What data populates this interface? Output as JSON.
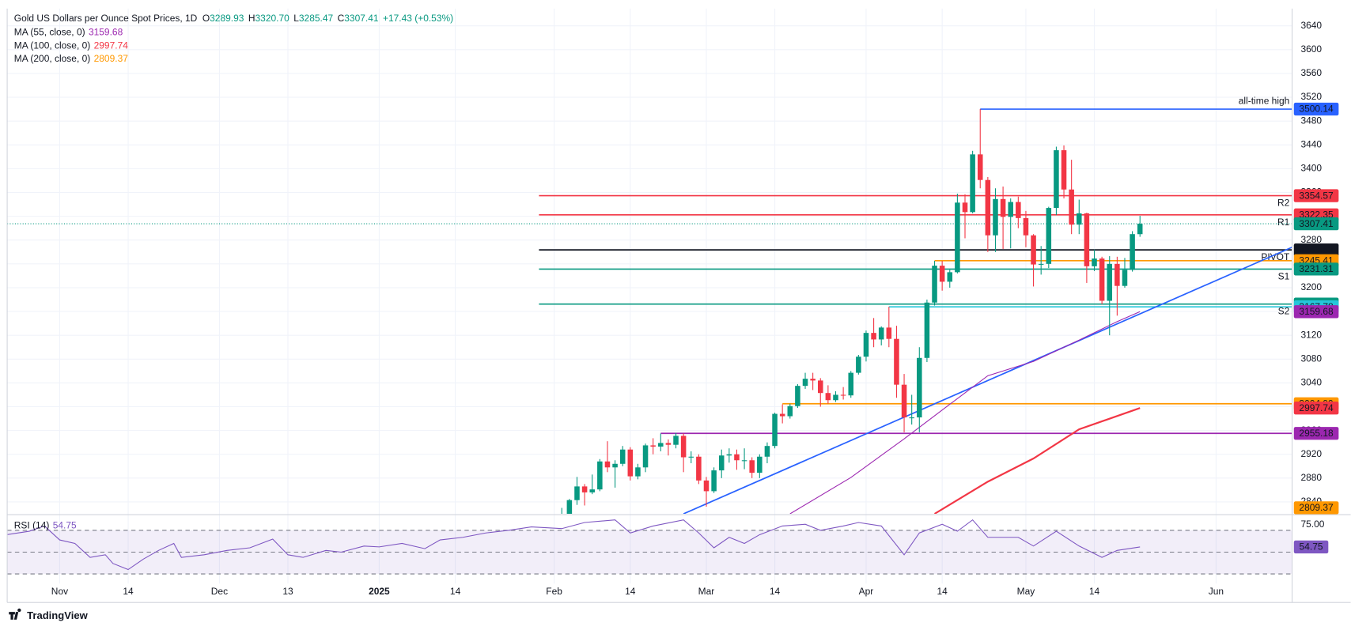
{
  "chart_data": {
    "type": "candlestick",
    "title": "Gold US Dollars per Ounce Spot Prices, 1D",
    "ohlc_labels": [
      "O",
      "H",
      "L",
      "C"
    ],
    "ohlc_value_labels": [
      "3289.93",
      "3320.70",
      "3285.47",
      "3307.41"
    ],
    "change": "+17.43 (+0.53%)",
    "up_color": "#089981",
    "down_color": "#f23645",
    "candles": [
      [
        2800,
        2830,
        2772,
        2815
      ],
      [
        2815,
        2845,
        2810,
        2843
      ],
      [
        2843,
        2882,
        2835,
        2866
      ],
      [
        2866,
        2870,
        2834,
        2856
      ],
      [
        2856,
        2886,
        2853,
        2861
      ],
      [
        2861,
        2912,
        2858,
        2908
      ],
      [
        2908,
        2942,
        2890,
        2898
      ],
      [
        2898,
        2910,
        2864,
        2904
      ],
      [
        2904,
        2934,
        2900,
        2928
      ],
      [
        2928,
        2932,
        2876,
        2883
      ],
      [
        2883,
        2904,
        2878,
        2898
      ],
      [
        2898,
        2938,
        2890,
        2935
      ],
      [
        2935,
        2947,
        2920,
        2933
      ],
      [
        2933,
        2955,
        2925,
        2939
      ],
      [
        2939,
        2945,
        2918,
        2936
      ],
      [
        2936,
        2956,
        2930,
        2951
      ],
      [
        2951,
        2955,
        2890,
        2915
      ],
      [
        2915,
        2925,
        2905,
        2916
      ],
      [
        2916,
        2920,
        2870,
        2876
      ],
      [
        2876,
        2882,
        2832,
        2858
      ],
      [
        2858,
        2898,
        2855,
        2893
      ],
      [
        2893,
        2928,
        2880,
        2918
      ],
      [
        2918,
        2930,
        2906,
        2920
      ],
      [
        2920,
        2928,
        2894,
        2910
      ],
      [
        2910,
        2930,
        2895,
        2910
      ],
      [
        2910,
        2915,
        2880,
        2889
      ],
      [
        2889,
        2920,
        2880,
        2916
      ],
      [
        2916,
        2940,
        2905,
        2934
      ],
      [
        2934,
        2990,
        2930,
        2988
      ],
      [
        2988,
        3004,
        2972,
        2984
      ],
      [
        2984,
        3005,
        2980,
        3001
      ],
      [
        3001,
        3038,
        2998,
        3035
      ],
      [
        3035,
        3057,
        3030,
        3047
      ],
      [
        3047,
        3057,
        3028,
        3044
      ],
      [
        3044,
        3048,
        3000,
        3023
      ],
      [
        3023,
        3036,
        3005,
        3011
      ],
      [
        3011,
        3026,
        3008,
        3020
      ],
      [
        3020,
        3033,
        3012,
        3019
      ],
      [
        3019,
        3060,
        3015,
        3057
      ],
      [
        3057,
        3087,
        3054,
        3084
      ],
      [
        3084,
        3128,
        3076,
        3124
      ],
      [
        3124,
        3149,
        3100,
        3113
      ],
      [
        3113,
        3135,
        3103,
        3133
      ],
      [
        3133,
        3168,
        3100,
        3114
      ],
      [
        3114,
        3136,
        3015,
        3037
      ],
      [
        3037,
        3055,
        2957,
        2982
      ],
      [
        2982,
        3020,
        2970,
        2982
      ],
      [
        2982,
        3100,
        2957,
        3082
      ],
      [
        3082,
        3180,
        3075,
        3175
      ],
      [
        3175,
        3245,
        3170,
        3237
      ],
      [
        3237,
        3245,
        3195,
        3210
      ],
      [
        3210,
        3230,
        3200,
        3226
      ],
      [
        3226,
        3358,
        3224,
        3343
      ],
      [
        3343,
        3357,
        3283,
        3327
      ],
      [
        3327,
        3430,
        3325,
        3424
      ],
      [
        3424,
        3500.14,
        3367,
        3381
      ],
      [
        3381,
        3386,
        3260,
        3288
      ],
      [
        3288,
        3367,
        3260,
        3349
      ],
      [
        3349,
        3370,
        3265,
        3319
      ],
      [
        3319,
        3350,
        3266,
        3344
      ],
      [
        3344,
        3353,
        3300,
        3317
      ],
      [
        3317,
        3329,
        3268,
        3288
      ],
      [
        3288,
        3290,
        3202,
        3239
      ],
      [
        3239,
        3270,
        3222,
        3240
      ],
      [
        3240,
        3336,
        3233,
        3334
      ],
      [
        3334,
        3437,
        3322,
        3431
      ],
      [
        3431,
        3439,
        3350,
        3365
      ],
      [
        3365,
        3415,
        3290,
        3306
      ],
      [
        3306,
        3348,
        3290,
        3325
      ],
      [
        3325,
        3326,
        3208,
        3236
      ],
      [
        3236,
        3264,
        3228,
        3249
      ],
      [
        3249,
        3252,
        3172,
        3178
      ],
      [
        3178,
        3253,
        3120,
        3240
      ],
      [
        3240,
        3252,
        3153,
        3203
      ],
      [
        3203,
        3250,
        3200,
        3230
      ],
      [
        3230,
        3295,
        3227,
        3290
      ],
      [
        3289.93,
        3320.7,
        3285.47,
        3307.41
      ]
    ],
    "xlim": [
      -72.9,
      96
    ],
    "xticks": [
      {
        "value": -66,
        "label": "Nov"
      },
      {
        "value": -57,
        "label": "14"
      },
      {
        "value": -45,
        "label": "Dec"
      },
      {
        "value": -36,
        "label": "13"
      },
      {
        "value": -24,
        "label": "2025"
      },
      {
        "value": -14,
        "label": "14"
      },
      {
        "value": -1,
        "label": "Feb"
      },
      {
        "value": 9,
        "label": "14"
      },
      {
        "value": 19,
        "label": "Mar"
      },
      {
        "value": 28,
        "label": "14"
      },
      {
        "value": 40,
        "label": "Apr"
      },
      {
        "value": 50,
        "label": "14"
      },
      {
        "value": 61,
        "label": "May"
      },
      {
        "value": 70,
        "label": "14"
      },
      {
        "value": 86,
        "label": "Jun"
      }
    ],
    "ylim": [
      2820,
      3669
    ],
    "yticks": [
      3640,
      3600,
      3560,
      3520,
      3480,
      3440,
      3400,
      3360,
      3320,
      3280,
      3240,
      3200,
      3160,
      3120,
      3080,
      3040,
      3000,
      2960,
      2920,
      2880,
      2840
    ],
    "grid": true,
    "series": [
      {
        "name": "MA (55, close, 0)",
        "color": "#9c27b0",
        "x": [
          30,
          38,
          45,
          51,
          56,
          62,
          68,
          73,
          76
        ],
        "values": [
          2820,
          2881,
          2946,
          3004,
          3052,
          3076,
          3112,
          3143,
          3159.68
        ]
      },
      {
        "name": "MA (100, close, 0)",
        "color": "#f23645",
        "x": [
          49,
          56,
          62,
          68,
          76
        ],
        "values": [
          2820,
          2874,
          2913,
          2962,
          2997.74
        ]
      },
      {
        "name": "MA (200, close, 0)",
        "color": "#ff9800",
        "x": [
          76
        ],
        "values": [
          2809.37
        ]
      }
    ],
    "trendline": {
      "color": "#2962ff",
      "x": [
        16,
        96
      ],
      "values": [
        2820,
        3268
      ]
    },
    "levels": [
      {
        "value": 3500.14,
        "color": "#2962ff",
        "x": 55,
        "label": "all-time high"
      },
      {
        "value": 3354.57,
        "color": "#f23645",
        "x": -3,
        "label": "R2"
      },
      {
        "value": 3322.35,
        "color": "#f23645",
        "x": -3,
        "label": "R1"
      },
      {
        "value": 3263.53,
        "color": "#131722",
        "x": -3,
        "label": "PIVOT"
      },
      {
        "value": 3245.41,
        "color": "#ff9800",
        "x": 49
      },
      {
        "value": 3231.31,
        "color": "#089981",
        "x": -3,
        "label": "S1"
      },
      {
        "value": 3172.49,
        "color": "#089981",
        "x": -3,
        "label": "S2"
      },
      {
        "value": 3167.78,
        "color": "#26c6da",
        "x": 43
      },
      {
        "value": 3004.99,
        "color": "#ff9800",
        "x": 29
      },
      {
        "value": 2955.18,
        "color": "#9c27b0",
        "x": 13
      }
    ],
    "rsi": {
      "name": "RSI (14)",
      "color": "#7e57c2",
      "x": [
        -73,
        -70,
        -68,
        -66,
        -64,
        -62,
        -60,
        -59,
        -57,
        -55,
        -53,
        -51,
        -50,
        -47,
        -44,
        -41,
        -38,
        -36,
        -34,
        -31,
        -29,
        -26,
        -24,
        -21,
        -18,
        -16,
        -13,
        -10,
        -7,
        -4,
        0,
        3,
        7,
        9,
        12,
        16,
        18,
        20,
        22,
        24,
        26,
        29,
        32,
        34,
        37,
        39,
        42,
        45,
        47,
        50,
        52,
        54,
        56,
        60,
        62,
        65,
        68,
        71,
        73,
        76
      ],
      "values": [
        66,
        69.2,
        74,
        61.2,
        58,
        45.2,
        47.6,
        39.6,
        34,
        43.6,
        51.6,
        58,
        45.2,
        47.6,
        51.6,
        54,
        62,
        47.6,
        45.2,
        51.6,
        50,
        55.6,
        54.8,
        58,
        53.2,
        61.2,
        63.6,
        67.6,
        70,
        73.2,
        71.6,
        77.2,
        79.6,
        67.6,
        74,
        79.6,
        67.6,
        54,
        63.6,
        58,
        66,
        74,
        75.6,
        70,
        74,
        77.2,
        74,
        47.6,
        67.6,
        75.6,
        69.2,
        79.6,
        63.6,
        63.6,
        55.6,
        69.2,
        55.6,
        45.2,
        51.6,
        54.75
      ],
      "ylim": [
        21.2,
        83.6
      ],
      "yticks": [
        {
          "value": 75,
          "label": "75.00"
        }
      ],
      "bands": [
        70,
        50,
        30
      ]
    },
    "source": "TradingView"
  }
}
